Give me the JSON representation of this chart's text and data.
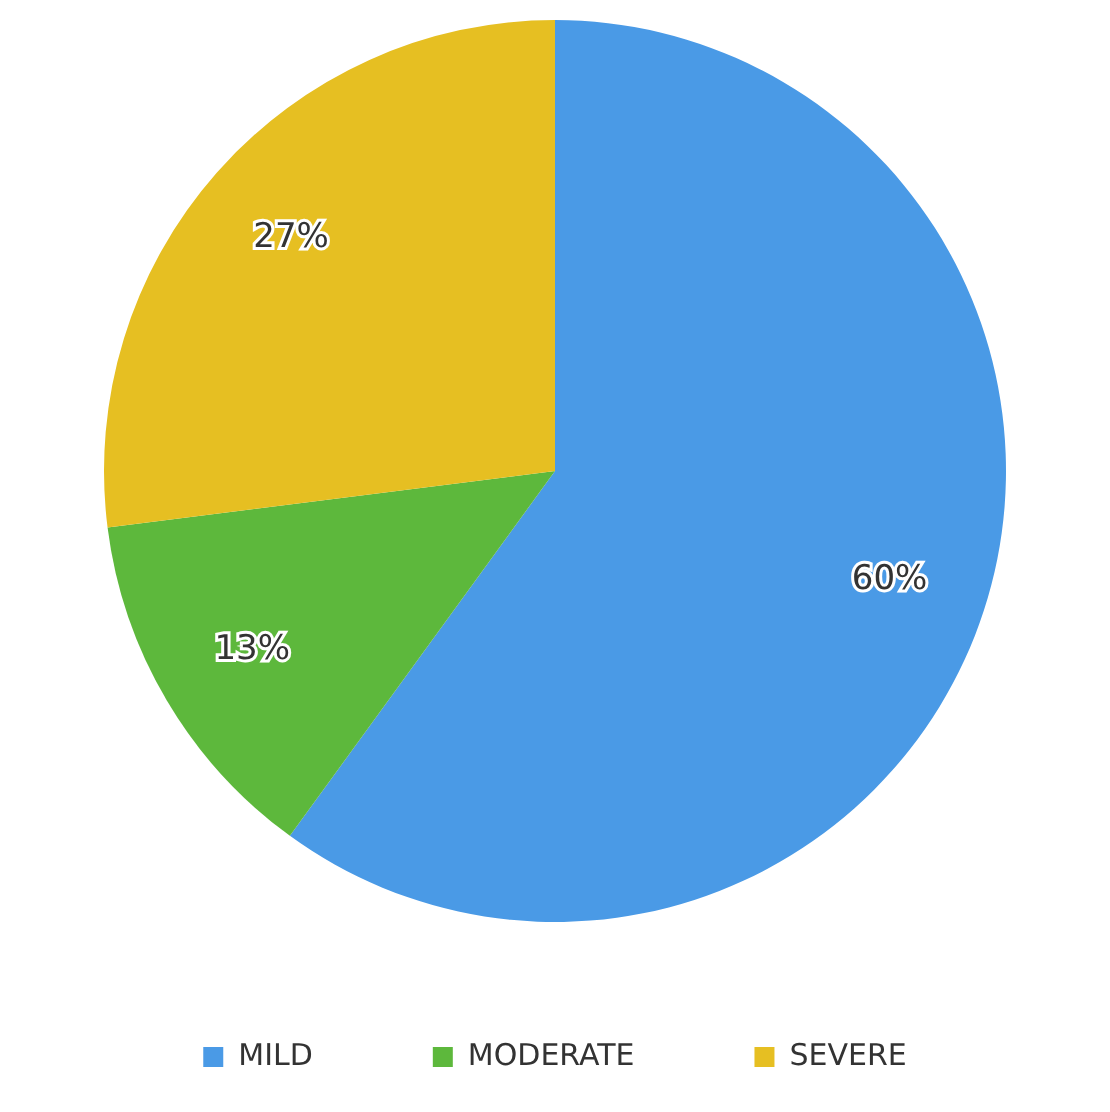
{
  "chart_data": {
    "type": "pie",
    "categories": [
      "MILD",
      "MODERATE",
      "SEVERE"
    ],
    "values": [
      60,
      13,
      27
    ],
    "colors": [
      "#4a9ae6",
      "#5db83c",
      "#e6bf22"
    ],
    "value_labels": [
      "60%",
      "13%",
      "27%"
    ],
    "legend": "bottom"
  }
}
